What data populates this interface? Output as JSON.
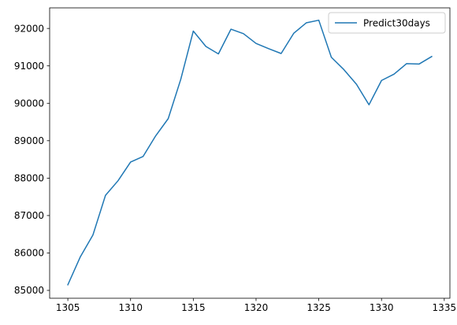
{
  "chart_data": {
    "type": "line",
    "title": "",
    "xlabel": "",
    "ylabel": "",
    "xlim": [
      1303.55,
      1335.45
    ],
    "ylim": [
      84790,
      92550
    ],
    "xticks": [
      1305,
      1310,
      1315,
      1320,
      1325,
      1330,
      1335
    ],
    "yticks": [
      85000,
      86000,
      87000,
      88000,
      89000,
      90000,
      91000,
      92000
    ],
    "grid": false,
    "legend_position": "top-right",
    "series": [
      {
        "name": "Predict30days",
        "color": "#1f77b4",
        "x": [
          1305,
          1306,
          1307,
          1308,
          1309,
          1310,
          1311,
          1312,
          1313,
          1314,
          1315,
          1316,
          1317,
          1318,
          1319,
          1320,
          1321,
          1322,
          1323,
          1324,
          1325,
          1326,
          1327,
          1328,
          1329,
          1330,
          1331,
          1332,
          1333,
          1334
        ],
        "y": [
          85150,
          85900,
          86480,
          87540,
          87930,
          88430,
          88580,
          89130,
          89590,
          90640,
          91930,
          91520,
          91320,
          91980,
          91860,
          91600,
          91460,
          91330,
          91870,
          92150,
          92220,
          91230,
          90900,
          90510,
          89960,
          90610,
          90780,
          91060,
          91050,
          91250
        ]
      }
    ]
  }
}
